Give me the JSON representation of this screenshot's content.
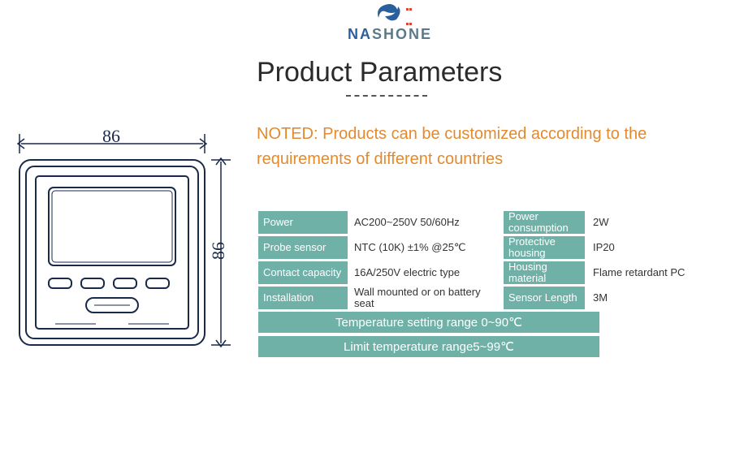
{
  "brand": {
    "name_part1": "NA",
    "name_part2": "SHONE",
    "logo_color": "#2a5f9e",
    "accent_color": "#d44a3a"
  },
  "title": "Product Parameters",
  "noted": {
    "text": "NOTED: Products can be customized according to the requirements of different countries",
    "color": "#e38a2e"
  },
  "diagram": {
    "width_label": "86",
    "height_label": "86",
    "stroke": "#1a2a4a"
  },
  "table": {
    "label_bg": "#6fb1a7",
    "band_bg": "#6fb1a7",
    "rows": [
      {
        "l1": "Power",
        "v1": "AC200~250V 50/60Hz",
        "l2": "Power consumption",
        "v2": "2W"
      },
      {
        "l1": "Probe sensor",
        "v1": "NTC (10K) ±1% @25℃",
        "l2": "Protective housing",
        "v2": "IP20"
      },
      {
        "l1": "Contact capacity",
        "v1": "16A/250V electric type",
        "l2": "Housing material",
        "v2": "Flame retardant PC"
      },
      {
        "l1": "Installation",
        "v1": "Wall mounted or on battery seat",
        "l2": "Sensor Length",
        "v2": "3M"
      }
    ],
    "bands": [
      "Temperature setting range 0~90℃",
      "Limit temperature range5~99℃"
    ]
  },
  "colors": {
    "title": "#2b2b2b",
    "text": "#333333"
  }
}
